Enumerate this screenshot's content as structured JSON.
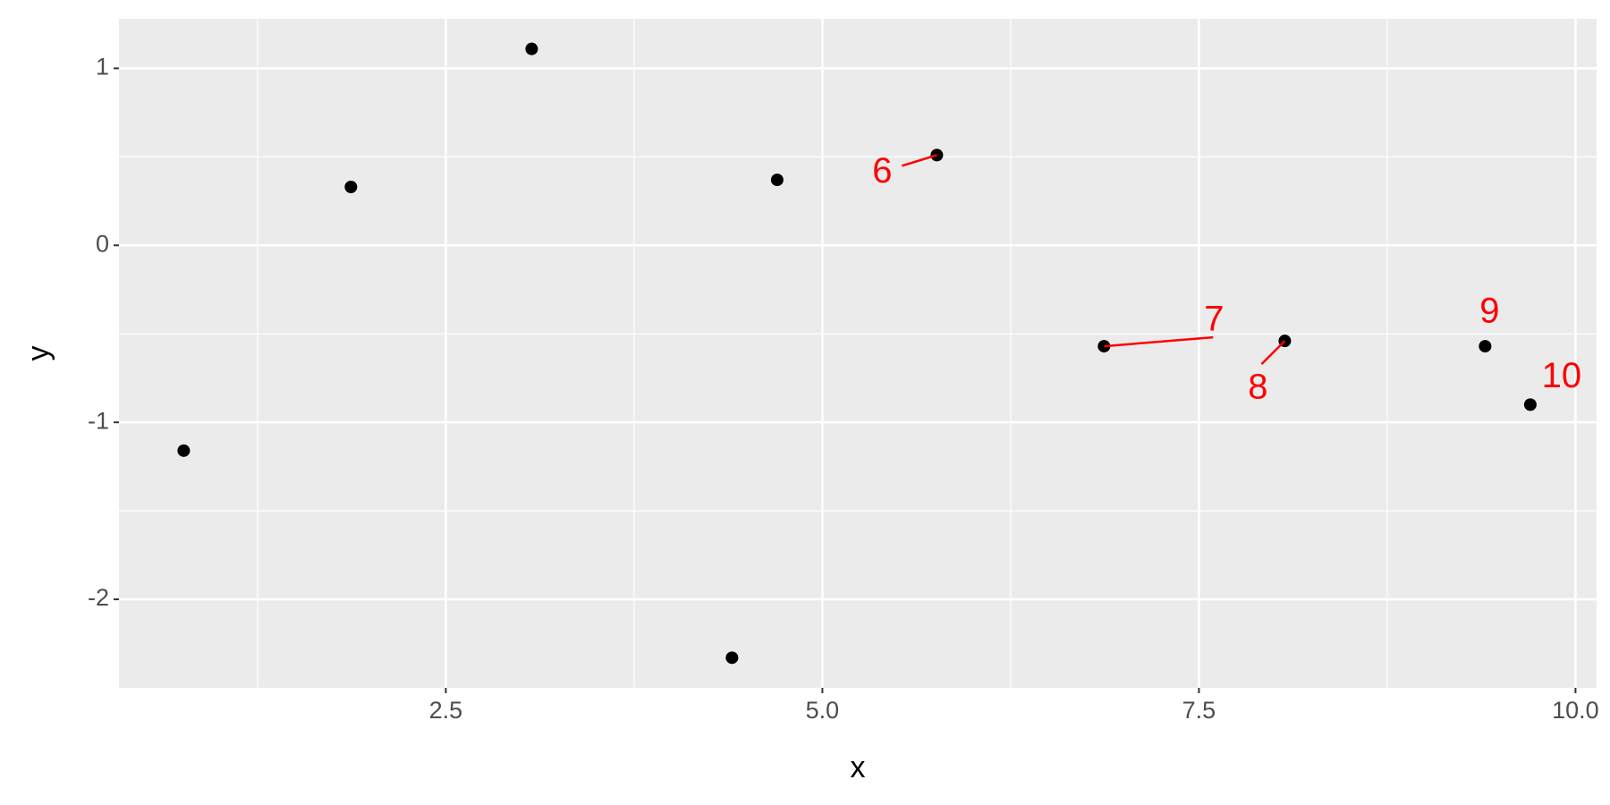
{
  "chart_data": {
    "type": "scatter",
    "x_label": "x",
    "y_label": "y",
    "x": [
      0.76,
      1.87,
      3.07,
      4.4,
      4.7,
      5.76,
      6.87,
      8.07,
      9.4,
      9.7
    ],
    "values": [
      -1.16,
      0.33,
      1.11,
      -2.33,
      0.37,
      0.51,
      -0.57,
      -0.54,
      -0.57,
      -0.9
    ],
    "labels": [
      null,
      null,
      null,
      null,
      null,
      "6",
      "7",
      "8",
      "9",
      "10"
    ],
    "color": "#000000",
    "label_color": "#ff0000",
    "xlim": [
      0.33,
      10.14
    ],
    "ylim": [
      -2.5,
      1.28
    ],
    "xticks": [
      2.5,
      {
        "value": 5,
        "label": "5.0"
      },
      7.5,
      {
        "value": 10,
        "label": "10.0"
      }
    ],
    "yticks": [
      -2,
      -1,
      0,
      1
    ],
    "xminor": [
      1.25,
      3.75,
      6.25,
      8.75
    ],
    "yminor": [
      -1.5,
      -0.5,
      0.5
    ],
    "grid": true
  }
}
